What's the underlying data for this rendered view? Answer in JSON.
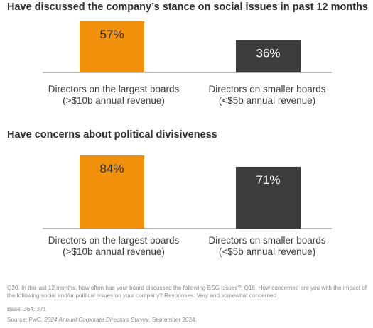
{
  "chart_data": [
    {
      "type": "bar",
      "title": "Have discussed the company’s stance on social issues in past 12 months",
      "categories": [
        [
          "Directors on the largest boards",
          "(>$10b annual revenue)"
        ],
        [
          "Directors on smaller boards",
          "(<$5b annual revenue)"
        ]
      ],
      "values": [
        57,
        36
      ],
      "value_labels": [
        "57%",
        "36%"
      ],
      "colors": [
        "#F0900B",
        "#3C3C3C"
      ],
      "label_colors": [
        "#2d2d2d",
        "#ffffff"
      ],
      "ylim": [
        0,
        100
      ]
    },
    {
      "type": "bar",
      "title": "Have concerns about political divisiveness",
      "categories": [
        [
          "Directors on the largest boards",
          "(>$10b annual revenue)"
        ],
        [
          "Directors on smaller boards",
          "(<$5b annual revenue)"
        ]
      ],
      "values": [
        84,
        71
      ],
      "value_labels": [
        "84%",
        "71%"
      ],
      "colors": [
        "#F0900B",
        "#3C3C3C"
      ],
      "label_colors": [
        "#2d2d2d",
        "#ffffff"
      ],
      "ylim": [
        0,
        100
      ]
    }
  ],
  "footnotes": {
    "question": "Q20. In the last 12 months, how often has your board discussed the following ESG issues?; Q16. How concerned are you with the impact of the following social and/or political issues on your company? Responses: Very and somewhat concerned",
    "base": "Base: 364; 371",
    "source_prefix": "Source: PwC, ",
    "source_title": "2024 Annual Corporate Directors Survey",
    "source_suffix": ", September 2024."
  }
}
